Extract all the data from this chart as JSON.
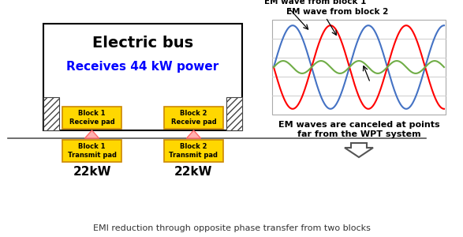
{
  "title": "EMI reduction through opposite phase transfer from two blocks",
  "bus_label": "Electric bus",
  "power_label": "Receives 44 kW power",
  "power_color": "#0000FF",
  "block1_receive": "Block 1\nReceive pad",
  "block2_receive": "Block 2\nReceive pad",
  "block1_transmit": "Block 1\nTransmit pad",
  "block2_transmit": "Block 2\nTransmit pad",
  "kw_label1": "22kW",
  "kw_label2": "22kW",
  "pad_color": "#FFD700",
  "pad_border": "#CC8800",
  "wave_label1": "EM wave from block 1",
  "wave_label2": "EM wave from block 2",
  "cancel_label": "EM waves are canceled at points\nfar from the WPT system",
  "wave1_color": "#4472C4",
  "wave2_color": "#FF0000",
  "sum_color": "#70AD47",
  "bg_color": "#FFFFFF",
  "arrow_fill": "#FFB0B0",
  "arrow_edge": "#FF6666",
  "ground_color": "#808080",
  "hatch_color": "#888888"
}
